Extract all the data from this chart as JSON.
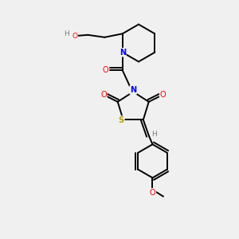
{
  "background_color": "#f0f0f0",
  "atom_colors": {
    "C": "#000000",
    "H": "#7a7a7a",
    "N": "#0000ff",
    "O": "#ff0000",
    "S": "#b8a000",
    "HO": "#7a7a7a"
  },
  "bond_color": "#000000",
  "bond_width": 1.4,
  "figsize": [
    3.0,
    3.0
  ],
  "dpi": 100
}
